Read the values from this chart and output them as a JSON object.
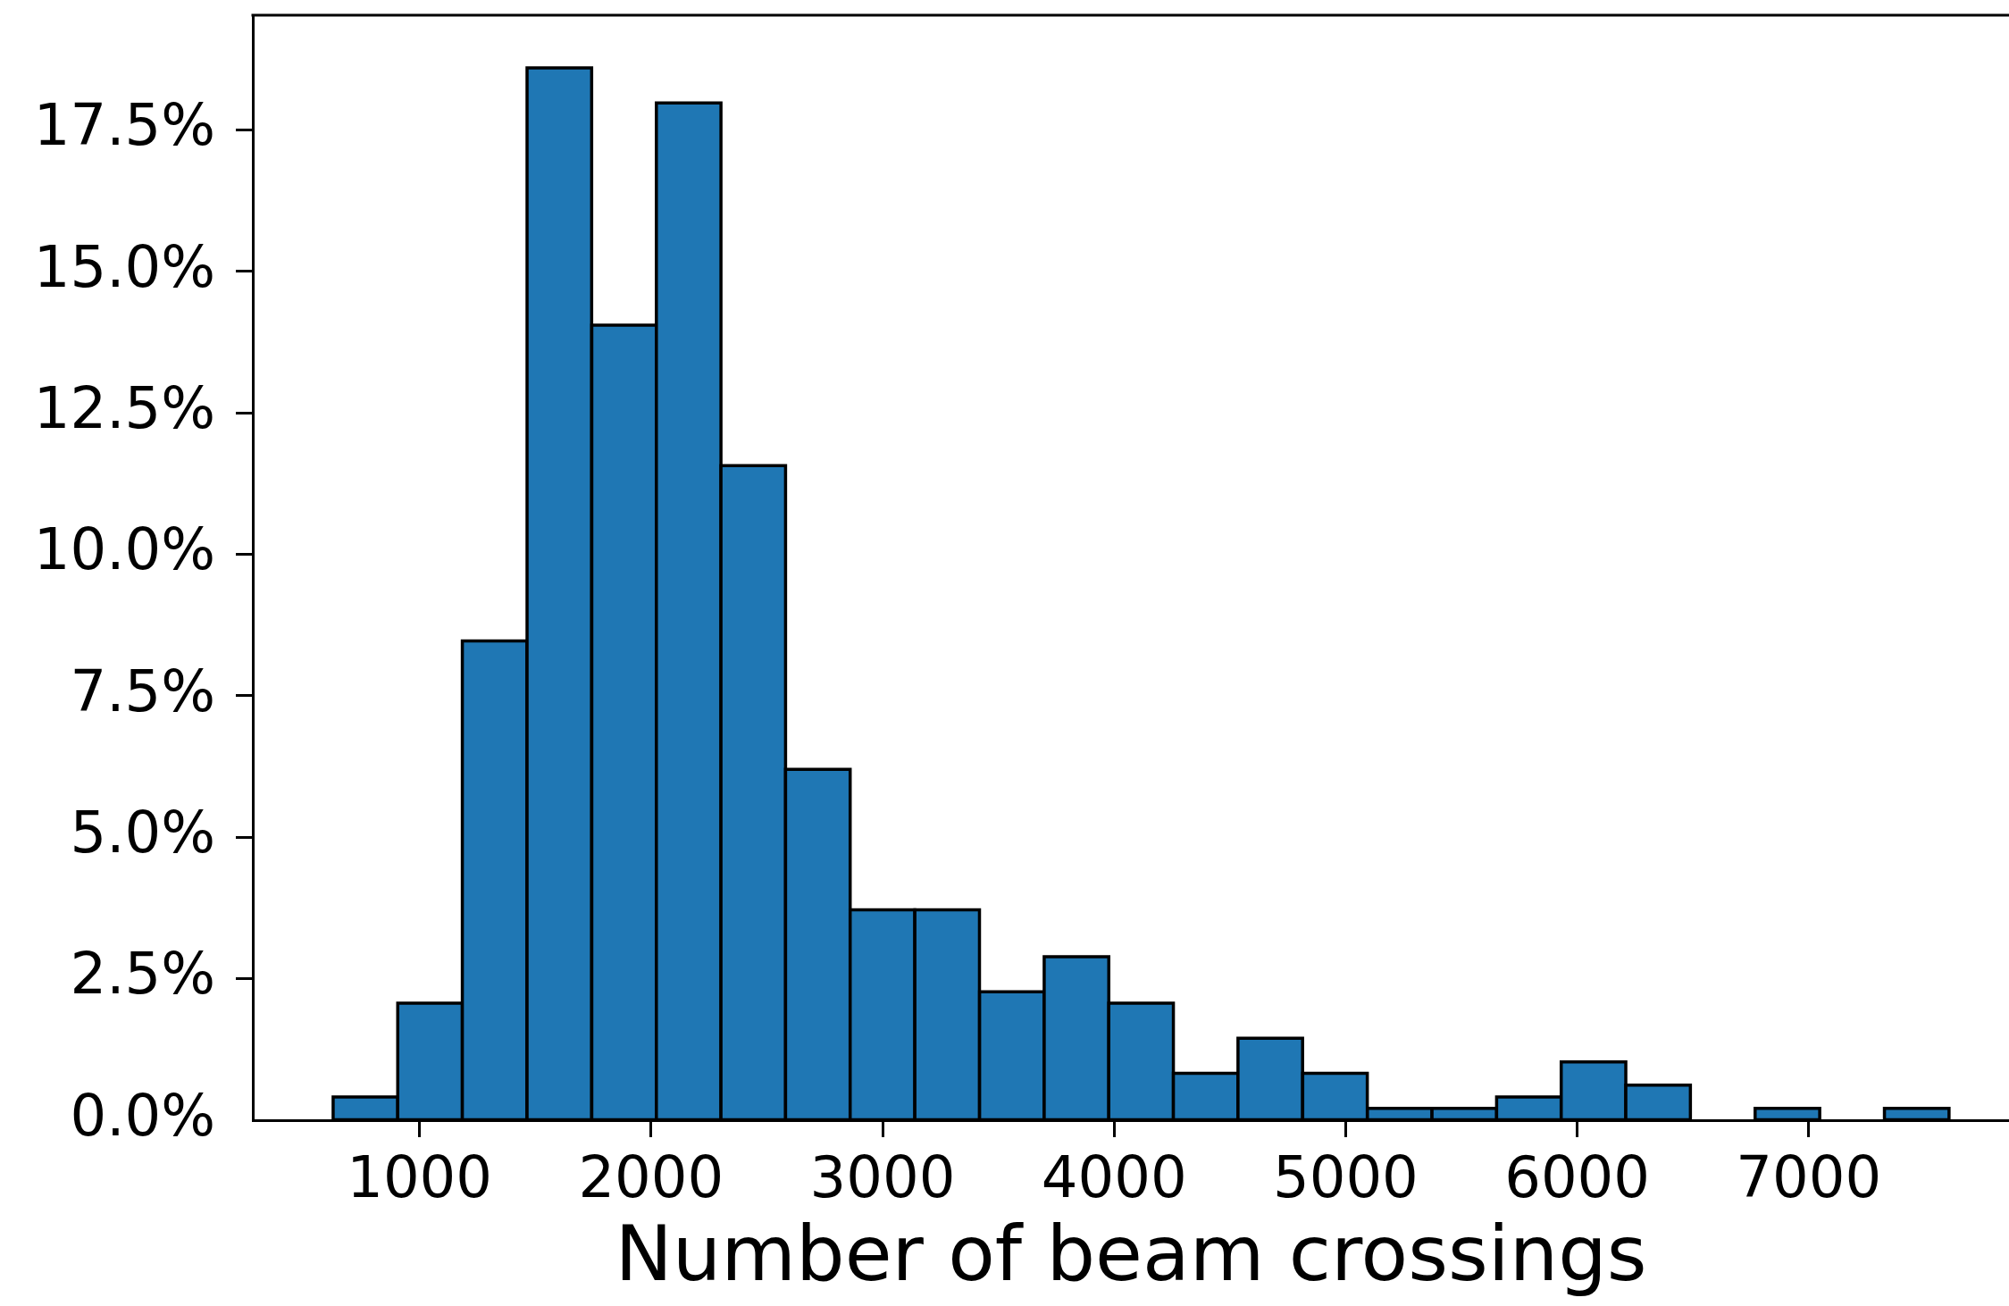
{
  "chart_data": {
    "type": "histogram",
    "xlabel": "Number of beam crossings",
    "bins": [
      627,
      906,
      1185,
      1464,
      1744,
      2023,
      2302,
      2581,
      2860,
      3139,
      3419,
      3698,
      3977,
      4256,
      4535,
      4814,
      5094,
      5373,
      5652,
      5931,
      6210,
      6489,
      6768,
      7048,
      7327,
      7606
    ],
    "values": [
      0.41,
      2.07,
      8.47,
      18.6,
      14.05,
      17.98,
      11.57,
      6.2,
      3.72,
      3.72,
      2.27,
      2.89,
      2.07,
      0.83,
      1.45,
      0.83,
      0.21,
      0.21,
      0.41,
      1.03,
      0.62,
      0,
      0.21,
      0,
      0.21
    ],
    "color": "#1f77b4",
    "xlim": [
      280,
      7865
    ],
    "xticks": [
      1000,
      2000,
      3000,
      4000,
      5000,
      6000,
      7000
    ],
    "ylim": [
      0,
      19.53
    ],
    "yticks": [
      {
        "value": 0,
        "label": "0.0%"
      },
      {
        "value": 2.5,
        "label": "2.5%"
      },
      {
        "value": 5,
        "label": "5.0%"
      },
      {
        "value": 7.5,
        "label": "7.5%"
      },
      {
        "value": 10,
        "label": "10.0%"
      },
      {
        "value": 12.5,
        "label": "12.5%"
      },
      {
        "value": 15,
        "label": "15.0%"
      },
      {
        "value": 17.5,
        "label": "17.5%"
      }
    ]
  }
}
